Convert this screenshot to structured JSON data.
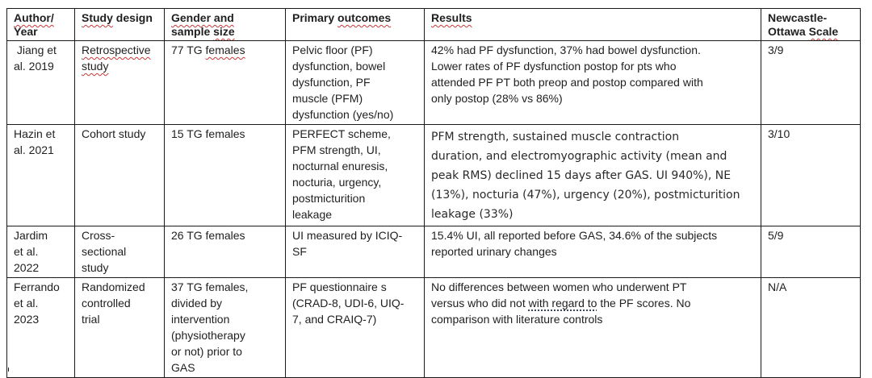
{
  "colors": {
    "background": "#ffffff",
    "border": "#1a1a1a",
    "text": "#1f1f1f",
    "spellcheck_squiggle": "#c63737",
    "grammar_underline": "#3d4a5c"
  },
  "table": {
    "header": {
      "cells": [
        [
          {
            "t": "Author/",
            "m": "w"
          },
          {
            "t": "\nYear"
          }
        ],
        [
          {
            "t": "Study",
            "m": "w"
          },
          {
            "t": " design"
          }
        ],
        [
          {
            "t": "Gender and",
            "m": "w"
          },
          {
            "t": "\nsample "
          },
          {
            "t": "size",
            "m": "w"
          }
        ],
        [
          {
            "t": "Primary "
          },
          {
            "t": "outcomes",
            "m": "w"
          }
        ],
        [
          {
            "t": "Results",
            "m": "w"
          }
        ],
        [
          {
            "t": "Newcastle-\nOttawa "
          },
          {
            "t": "Scale",
            "m": "w"
          }
        ]
      ]
    },
    "rows": [
      {
        "cells": [
          [
            {
              "t": " Jiang et\nal. 2019"
            }
          ],
          [
            {
              "t": "Retrospective",
              "m": "w"
            },
            {
              "t": "\n"
            },
            {
              "t": "study",
              "m": "w"
            }
          ],
          [
            {
              "t": "77 TG "
            },
            {
              "t": "females",
              "m": "w"
            }
          ],
          [
            {
              "t": "Pelvic floor (PF)\ndysfunction, bowel\ndysfunction, PF\nmuscle (PFM)\ndysfunction (yes/no)"
            }
          ],
          [
            {
              "t": "42% had PF dysfunction, 37% had bowel dysfunction.\nLower rates of PF dysfunction postop for pts who\nattended PF PT both preop and postop compared with\nonly postop (28% vs 86%)"
            }
          ],
          [
            {
              "t": "3/9"
            }
          ]
        ]
      },
      {
        "cells": [
          [
            {
              "t": "Hazin et\nal. 2021"
            }
          ],
          [
            {
              "t": "Cohort study"
            }
          ],
          [
            {
              "t": "15 TG females"
            }
          ],
          [
            {
              "t": "PERFECT scheme,\nPFM strength, UI,\nnocturnal enuresis,\nnocturia, urgency,\npostmicturition\nleakage"
            }
          ],
          [
            {
              "t": "PFM strength, sustained muscle contraction\nduration, and electromyographic activity (mean and\npeak RMS) declined 15 days after GAS. UI 940%), NE\n(13%), nocturia (47%), urgency (20%), postmicturition\nleakage (33%)"
            }
          ],
          [
            {
              "t": "3/10"
            }
          ]
        ]
      },
      {
        "cells": [
          [
            {
              "t": "Jardim\net al.\n2022"
            }
          ],
          [
            {
              "t": "Cross-\nsectional\nstudy"
            }
          ],
          [
            {
              "t": "26 TG females"
            }
          ],
          [
            {
              "t": "UI measured by ICIQ-\nSF"
            }
          ],
          [
            {
              "t": "15.4% UI, all reported before GAS, 34.6% of the subjects\nreported urinary changes"
            }
          ],
          [
            {
              "t": "5/9"
            }
          ]
        ]
      },
      {
        "cells": [
          [
            {
              "t": "Ferrando\net al.\n2023"
            }
          ],
          [
            {
              "t": "Randomized\ncontrolled\ntrial"
            }
          ],
          [
            {
              "t": "37 TG females,\ndivided by\nintervention\n(physiotherapy\nor not) prior to\nGAS"
            }
          ],
          [
            {
              "t": "PF questionnaire s\n(CRAD-8, UDI-6, UIQ-\n7, and CRAIQ-7)"
            }
          ],
          [
            {
              "t": "No differences between women who underwent PT\nversus who did not "
            },
            {
              "t": "with regard to",
              "m": "g"
            },
            {
              "t": " the PF scores. No\ncomparison with literature controls"
            }
          ],
          [
            {
              "t": "N/A"
            }
          ]
        ]
      }
    ]
  }
}
